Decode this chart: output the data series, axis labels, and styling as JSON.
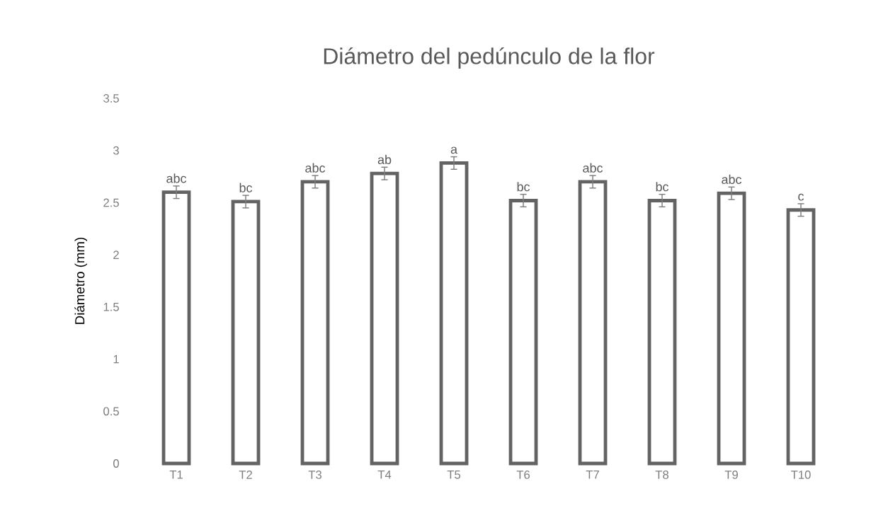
{
  "chart_data": {
    "type": "bar",
    "title": "Diámetro del pedúnculo de la flor",
    "ylabel": "Diámetro (mm)",
    "categories": [
      "T1",
      "T2",
      "T3",
      "T4",
      "T5",
      "T6",
      "T7",
      "T8",
      "T9",
      "T10"
    ],
    "values": [
      2.6,
      2.51,
      2.7,
      2.78,
      2.88,
      2.52,
      2.7,
      2.52,
      2.59,
      2.43
    ],
    "errors": [
      0.06,
      0.06,
      0.06,
      0.06,
      0.06,
      0.06,
      0.06,
      0.06,
      0.06,
      0.06
    ],
    "value_labels": [
      "abc",
      "bc",
      "abc",
      "ab",
      "a",
      "bc",
      "abc",
      "bc",
      "abc",
      "c"
    ],
    "color": "#636363",
    "ylim": [
      0,
      3.5
    ],
    "yticks": [
      0,
      0.5,
      1,
      1.5,
      2,
      2.5,
      3,
      3.5
    ],
    "grid": false
  }
}
